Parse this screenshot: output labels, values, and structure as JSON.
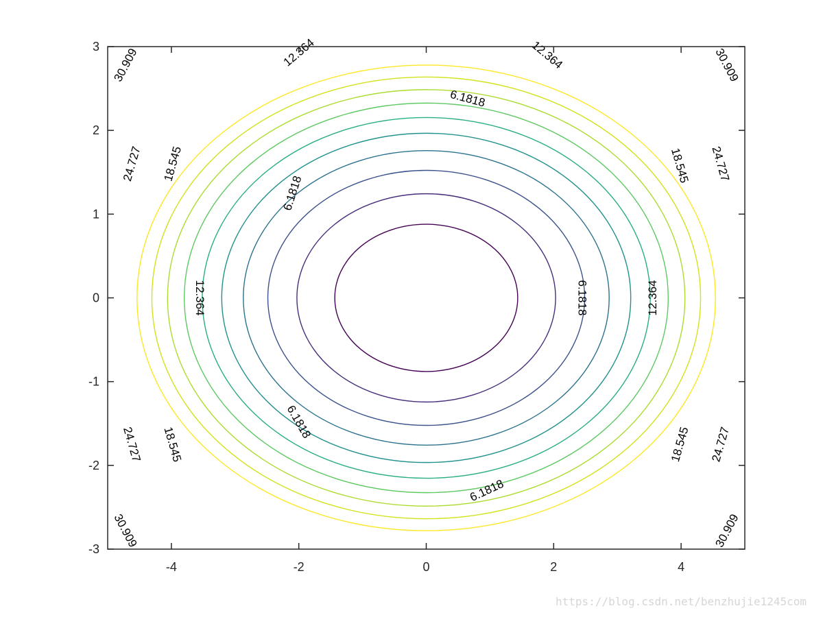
{
  "watermark": "https://blog.csdn.net/benzhujie1245com",
  "chart_data": {
    "type": "contour",
    "function": "z = 1.5*x^2 + 4*y^2",
    "xlim": [
      -5,
      5
    ],
    "ylim": [
      -3,
      3
    ],
    "xticks": [
      -4,
      -2,
      0,
      2,
      4
    ],
    "yticks": [
      -3,
      -2,
      -1,
      0,
      1,
      2,
      3
    ],
    "xtick_labels": [
      "-4",
      "-2",
      "0",
      "2",
      "4"
    ],
    "ytick_labels": [
      "-3",
      "-2",
      "-1",
      "0",
      "1",
      "2",
      "3"
    ],
    "levels": [
      {
        "value": 3.0909,
        "label": "",
        "color": "#440154"
      },
      {
        "value": 6.1818,
        "label": "6.1818",
        "color": "#472d7b"
      },
      {
        "value": 9.2727,
        "label": "",
        "color": "#3b528b"
      },
      {
        "value": 12.364,
        "label": "12.364",
        "color": "#2c728e"
      },
      {
        "value": 15.455,
        "label": "",
        "color": "#21918c"
      },
      {
        "value": 18.545,
        "label": "18.545",
        "color": "#28ae80"
      },
      {
        "value": 21.636,
        "label": "",
        "color": "#5ec962"
      },
      {
        "value": 24.727,
        "label": "24.727",
        "color": "#addc30"
      },
      {
        "value": 27.818,
        "label": "",
        "color": "#d2e21b"
      },
      {
        "value": 30.909,
        "label": "30.909",
        "color": "#fde725"
      }
    ],
    "contour_labels": [
      {
        "text": "30.909",
        "x": -4.72,
        "y": 2.78,
        "angle": -62
      },
      {
        "text": "30.909",
        "x": 4.72,
        "y": 2.78,
        "angle": 62
      },
      {
        "text": "30.909",
        "x": -4.72,
        "y": -2.78,
        "angle": 62
      },
      {
        "text": "30.909",
        "x": 4.72,
        "y": -2.78,
        "angle": -62
      },
      {
        "text": "24.727",
        "x": -4.62,
        "y": 1.6,
        "angle": -74
      },
      {
        "text": "24.727",
        "x": 4.62,
        "y": 1.6,
        "angle": 74
      },
      {
        "text": "24.727",
        "x": -4.62,
        "y": -1.75,
        "angle": 74
      },
      {
        "text": "24.727",
        "x": 4.62,
        "y": -1.75,
        "angle": -74
      },
      {
        "text": "18.545",
        "x": -3.98,
        "y": 1.6,
        "angle": -74
      },
      {
        "text": "18.545",
        "x": 3.98,
        "y": 1.58,
        "angle": 74
      },
      {
        "text": "18.545",
        "x": -3.98,
        "y": -1.75,
        "angle": 74
      },
      {
        "text": "18.545",
        "x": 3.98,
        "y": -1.75,
        "angle": -74
      },
      {
        "text": "12.364",
        "x": -2.0,
        "y": 2.93,
        "angle": -40
      },
      {
        "text": "12.364",
        "x": 1.9,
        "y": 2.9,
        "angle": 40
      },
      {
        "text": "12.364",
        "x": -3.55,
        "y": 0.0,
        "angle": 90
      },
      {
        "text": "12.364",
        "x": 3.55,
        "y": 0.0,
        "angle": -90
      },
      {
        "text": "6.1818",
        "x": 0.65,
        "y": 2.38,
        "angle": 15
      },
      {
        "text": "6.1818",
        "x": -2.1,
        "y": 1.25,
        "angle": -72
      },
      {
        "text": "6.1818",
        "x": 2.45,
        "y": 0.0,
        "angle": 90
      },
      {
        "text": "6.1818",
        "x": -2.0,
        "y": -1.48,
        "angle": 60
      },
      {
        "text": "6.1818",
        "x": 0.95,
        "y": -2.3,
        "angle": -25
      }
    ],
    "title": "",
    "xlabel": "",
    "ylabel": "",
    "grid": false,
    "legend": "none"
  }
}
